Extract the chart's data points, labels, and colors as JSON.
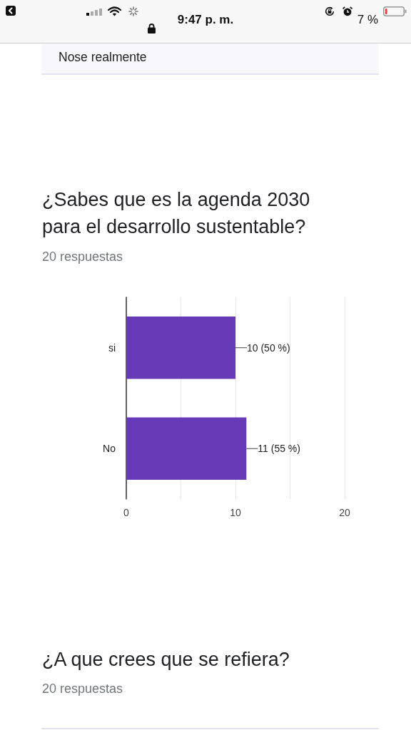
{
  "chart_data": {
    "type": "bar",
    "orientation": "horizontal",
    "title": "¿Sabes que es la agenda 2030 para el desarrollo sustentable?",
    "subtitle": "20 respuestas",
    "categories": [
      "si",
      "No"
    ],
    "values": [
      10,
      11
    ],
    "color": "#673ab7",
    "value_labels": [
      "10 (50 %)",
      "11 (55 %)"
    ],
    "xlim": [
      0,
      20
    ],
    "xticks": [
      0,
      {
        "value": 5,
        "label": null
      },
      10,
      {
        "value": 15,
        "label": null
      },
      20
    ],
    "grid": "x",
    "annotations": [
      "9:47 p. m.",
      "7 %",
      "Nose realmente",
      "¿A que crees que se refiera?",
      "20 respuestas"
    ]
  }
}
